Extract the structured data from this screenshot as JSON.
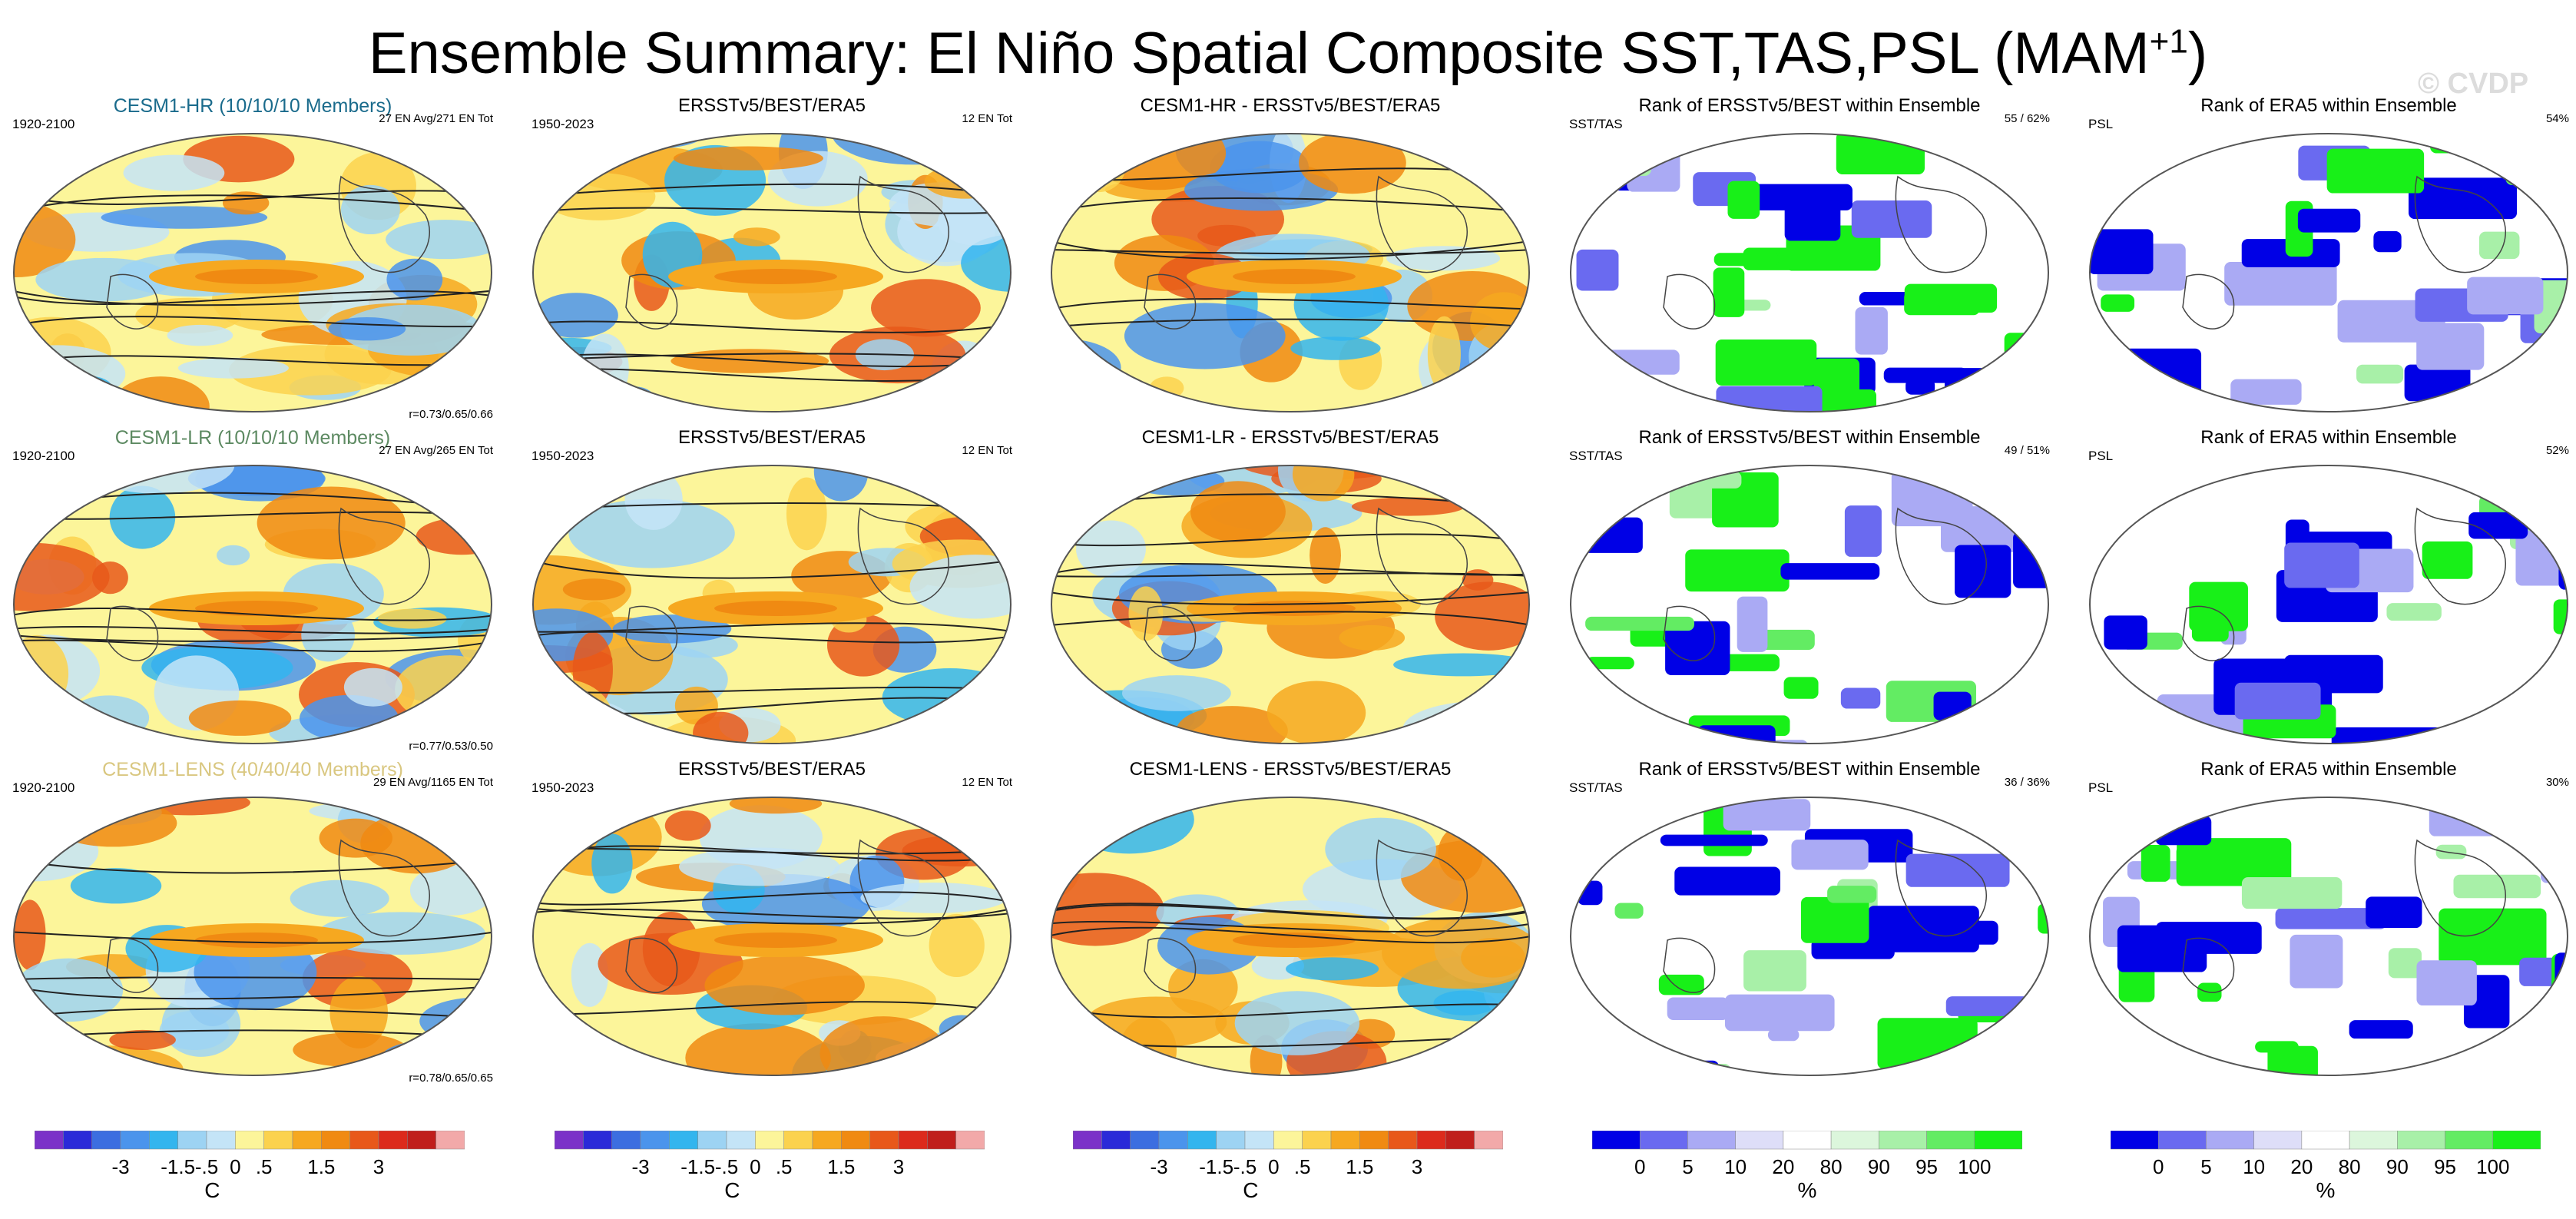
{
  "title": {
    "main": "Ensemble Summary: El Niño Spatial Composite SST,TAS,PSL (MAM",
    "sup": "+1",
    "close": ")"
  },
  "watermark": "© CVDP",
  "colors": {
    "hr_title": "#1a6b8c",
    "lr_title": "#5d8a62",
    "lens_title": "#d9c780",
    "diverging": [
      "#7b32c8",
      "#2a2ad8",
      "#3c6ee0",
      "#4b94ec",
      "#33b5ee",
      "#9dd3f3",
      "#c4e4f7",
      "#fcf59a",
      "#fbd24e",
      "#f6a820",
      "#f08a12",
      "#e8581a",
      "#dc2a1c",
      "#c01f1c",
      "#f2a9a9"
    ],
    "rank": [
      "#0000e6",
      "#6a6af0",
      "#aaaaf4",
      "#dedef8",
      "#ffffff",
      "#dcf6dc",
      "#a8f0a8",
      "#63ec63",
      "#18f018"
    ]
  },
  "rows": [
    {
      "model_title": "CESM1-HR (10/10/10 Members)",
      "model_period": "1920-2100",
      "model_counts": "27 EN Avg/271 EN Tot",
      "model_corr": "r=0.73/0.65/0.66",
      "obs_title": "ERSSTv5/BEST/ERA5",
      "obs_period": "1950-2023",
      "obs_counts": "12 EN Tot",
      "diff_title": "CESM1-HR - ERSSTv5/BEST/ERA5",
      "rank1_title": "Rank of ERSSTv5/BEST within Ensemble",
      "rank1_left": "SST/TAS",
      "rank1_right": "55 /  62%",
      "rank2_title": "Rank of ERA5 within Ensemble",
      "rank2_left": "PSL",
      "rank2_right": "54%"
    },
    {
      "model_title": "CESM1-LR (10/10/10 Members)",
      "model_period": "1920-2100",
      "model_counts": "27 EN Avg/265 EN Tot",
      "model_corr": "r=0.77/0.53/0.50",
      "obs_title": "ERSSTv5/BEST/ERA5",
      "obs_period": "1950-2023",
      "obs_counts": "12 EN Tot",
      "diff_title": "CESM1-LR - ERSSTv5/BEST/ERA5",
      "rank1_title": "Rank of ERSSTv5/BEST within Ensemble",
      "rank1_left": "SST/TAS",
      "rank1_right": "49 /  51%",
      "rank2_title": "Rank of ERA5 within Ensemble",
      "rank2_left": "PSL",
      "rank2_right": "52%"
    },
    {
      "model_title": "CESM1-LENS (40/40/40 Members)",
      "model_period": "1920-2100",
      "model_counts": "29 EN Avg/1165 EN Tot",
      "model_corr": "r=0.78/0.65/0.65",
      "obs_title": "ERSSTv5/BEST/ERA5",
      "obs_period": "1950-2023",
      "obs_counts": "12 EN Tot",
      "diff_title": "CESM1-LENS - ERSSTv5/BEST/ERA5",
      "rank1_title": "Rank of ERSSTv5/BEST within Ensemble",
      "rank1_left": "SST/TAS",
      "rank1_right": "36 /  36%",
      "rank2_title": "Rank of ERA5 within Ensemble",
      "rank2_left": "PSL",
      "rank2_right": "30%"
    }
  ],
  "colorbars": {
    "temp": {
      "ticks": [
        "-3",
        "-1.5",
        "-.5",
        "0",
        ".5",
        "1.5",
        "3"
      ],
      "unit": "C"
    },
    "rank": {
      "ticks": [
        "0",
        "5",
        "10",
        "20",
        "80",
        "90",
        "95",
        "100"
      ],
      "unit": "%"
    }
  }
}
